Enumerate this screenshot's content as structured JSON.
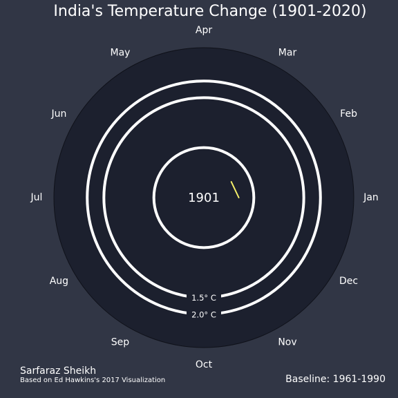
{
  "chart_data": {
    "type": "polar-line",
    "title": "India's Temperature Change (1901-2020)",
    "months": [
      "Jan",
      "Feb",
      "Mar",
      "Apr",
      "May",
      "Jun",
      "Jul",
      "Aug",
      "Sep",
      "Oct",
      "Nov",
      "Dec"
    ],
    "current_year": "1901",
    "series": [
      {
        "values": [
          -0.45,
          -0.55
        ],
        "color": "#f5f06a"
      }
    ],
    "rings": [
      {
        "value": 0.0,
        "label": ""
      },
      {
        "value": 1.5,
        "label": "1.5° C"
      },
      {
        "value": 2.0,
        "label": "2.0° C"
      }
    ],
    "rlim": [
      -1.5,
      3.0
    ],
    "grid": false
  },
  "footer": {
    "author": "Sarfaraz Sheikh",
    "credit": "Based on Ed Hawkins's 2017 Visualization",
    "baseline": "Baseline: 1961-1990"
  },
  "colors": {
    "background": "#313645",
    "plot_area": "#1c202e",
    "ring": "#ffffff"
  }
}
